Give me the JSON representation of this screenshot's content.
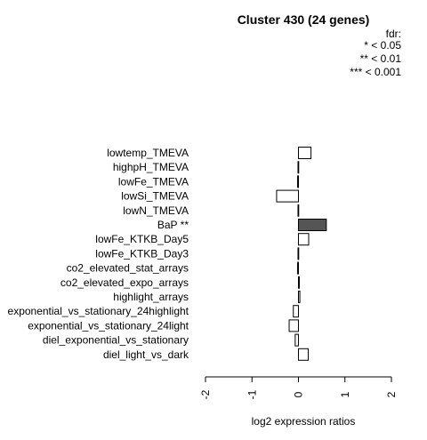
{
  "chart_data": {
    "type": "bar",
    "orientation": "horizontal",
    "title": "Cluster 430 (24 genes)",
    "legend": {
      "title": "fdr:",
      "entries": [
        "* < 0.05",
        "** < 0.01",
        "*** < 0.001"
      ],
      "placement": "top-right"
    },
    "xlabel": "log2 expression ratios",
    "xlim": [
      -2,
      2
    ],
    "xticks": [
      "-2",
      "-1",
      "0",
      "1",
      "2"
    ],
    "categories": [
      "lowtemp_TMEVA",
      "highpH_TMEVA",
      "lowFe_TMEVA",
      "lowSi_TMEVA",
      "lowN_TMEVA",
      "BaP **",
      "lowFe_KTKB_Day5",
      "lowFe_KTKB_Day3",
      "co2_elevated_stat_arrays",
      "co2_elevated_expo_arrays",
      "highlight_arrays",
      "exponential_vs_stationary_24highlight",
      "exponential_vs_stationary_24light",
      "diel_exponential_vs_stationary",
      "diel_light_vs_dark"
    ],
    "values": [
      0.27,
      -0.01,
      -0.02,
      -0.47,
      -0.01,
      0.6,
      0.22,
      -0.01,
      -0.02,
      0.02,
      0.03,
      -0.11,
      -0.2,
      -0.07,
      0.21
    ],
    "significant": [
      false,
      false,
      false,
      false,
      false,
      true,
      false,
      false,
      false,
      false,
      false,
      false,
      false,
      false,
      false
    ],
    "colors": {
      "bar": "#ffffff",
      "significant_bar": "#555555",
      "stroke": "#000000"
    }
  }
}
